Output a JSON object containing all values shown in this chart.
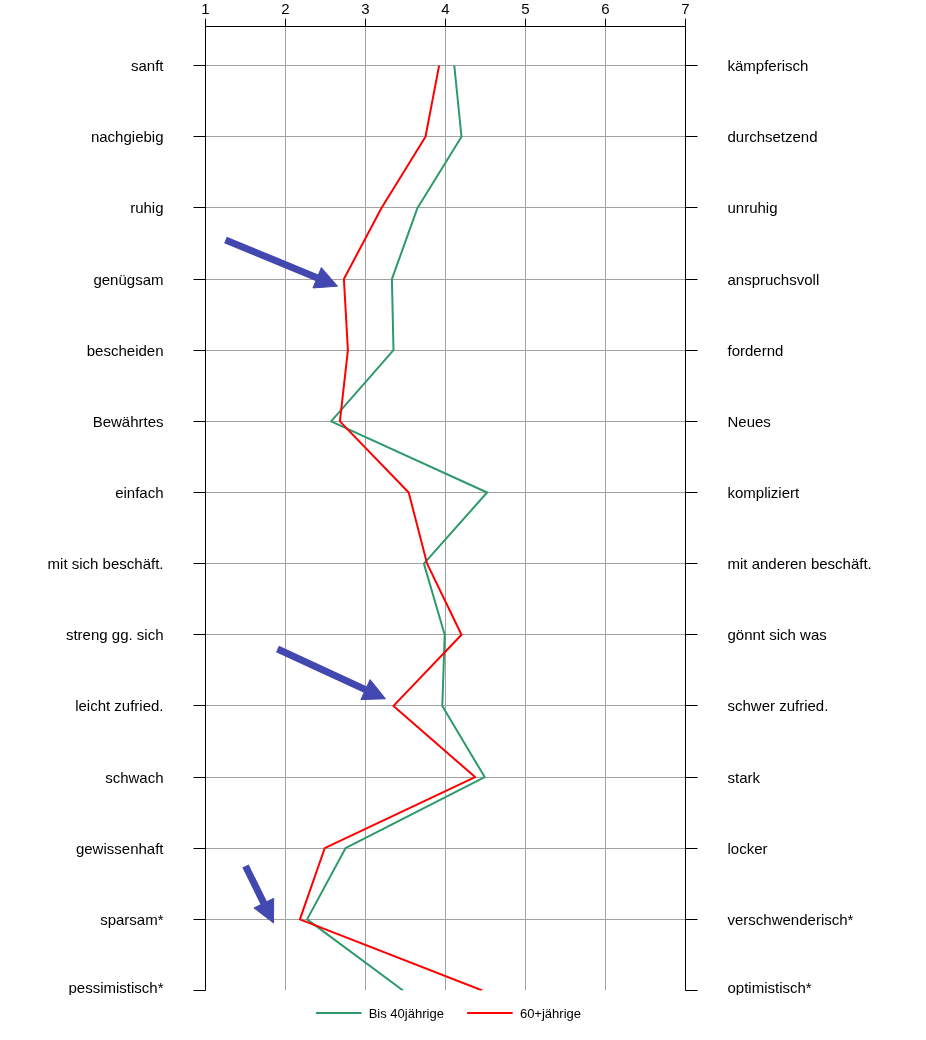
{
  "chart_data": {
    "type": "line",
    "orientation": "horizontal",
    "categories": [
      "sanft",
      "nachgiebig",
      "ruhig",
      "genügsam",
      "bescheiden",
      "Bewährtes",
      "einfach",
      "mit sich beschäft.",
      "streng gg. sich",
      "leicht zufried.",
      "schwach",
      "gewissenhaft",
      "sparsam*",
      "pessimistisch*"
    ],
    "y2_categories": [
      "kämpferisch",
      "durchsetzend",
      "unruhig",
      "anspruchsvoll",
      "fordernd",
      "Neues",
      "kompliziert",
      "mit anderen beschäft.",
      "gönnt sich was",
      "schwer zufried.",
      "stark",
      "locker",
      "verschwenderisch*",
      "optimistisch*"
    ],
    "series": [
      {
        "name": "Bis 40jährige",
        "color": "#2e9a6a",
        "values": [
          4.11,
          4.2,
          3.65,
          3.33,
          3.35,
          2.57,
          4.52,
          3.73,
          3.99,
          3.96,
          4.49,
          2.75,
          2.27,
          3.47
        ]
      },
      {
        "name": "60+jährige",
        "color": "#ff0000",
        "values": [
          3.92,
          3.75,
          3.2,
          2.73,
          2.78,
          2.68,
          3.54,
          3.77,
          4.2,
          3.35,
          4.37,
          2.49,
          2.18,
          4.46
        ]
      }
    ],
    "xlim": [
      1,
      7
    ],
    "xticks": [
      1,
      2,
      3,
      4,
      5,
      6,
      7
    ],
    "grid": true,
    "legend": "bottom",
    "marker": "none",
    "line_style": "solid"
  }
}
